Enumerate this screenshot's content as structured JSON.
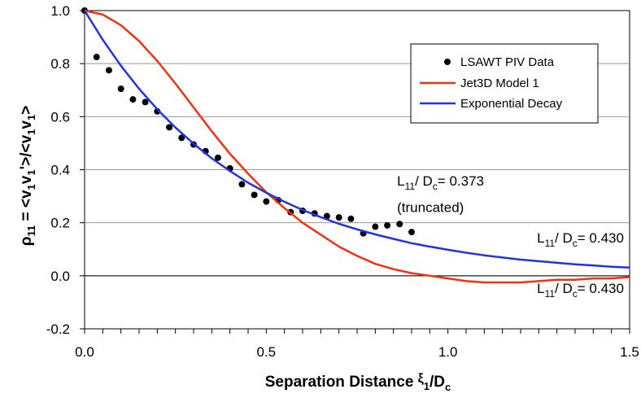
{
  "chart_data": {
    "type": "scatter",
    "xlabel": "Separation Distance ξ1/Dc",
    "ylabel": "ρ11 = <v1v1'>/<v1v1>",
    "xlim": [
      0.0,
      1.5
    ],
    "ylim": [
      -0.2,
      1.0
    ],
    "x_ticks": [
      "0.0",
      "0.5",
      "1.0",
      "1.5"
    ],
    "y_ticks": [
      "1.0",
      "0.8",
      "0.6",
      "0.4",
      "0.2",
      "0.0",
      "-0.2"
    ],
    "grid": "horizontal",
    "legend_position": "top-right",
    "series": [
      {
        "name": "LSAWT PIV Data",
        "kind": "markers",
        "color": "#000000",
        "x": [
          0.0,
          0.033,
          0.067,
          0.1,
          0.133,
          0.167,
          0.2,
          0.233,
          0.267,
          0.3,
          0.333,
          0.367,
          0.4,
          0.433,
          0.467,
          0.5,
          0.533,
          0.567,
          0.6,
          0.633,
          0.667,
          0.7,
          0.733,
          0.767,
          0.8,
          0.833,
          0.867,
          0.9
        ],
        "y": [
          1.0,
          0.825,
          0.775,
          0.705,
          0.665,
          0.655,
          0.62,
          0.56,
          0.52,
          0.495,
          0.47,
          0.445,
          0.405,
          0.345,
          0.305,
          0.28,
          0.285,
          0.24,
          0.245,
          0.235,
          0.225,
          0.22,
          0.215,
          0.16,
          0.185,
          0.19,
          0.195,
          0.165
        ]
      },
      {
        "name": "Jet3D Model 1",
        "kind": "line",
        "color": "#ee3311",
        "x": [
          0.0,
          0.05,
          0.1,
          0.15,
          0.2,
          0.25,
          0.3,
          0.35,
          0.4,
          0.45,
          0.5,
          0.55,
          0.6,
          0.65,
          0.7,
          0.75,
          0.8,
          0.85,
          0.9,
          0.95,
          1.0,
          1.05,
          1.1,
          1.15,
          1.2,
          1.25,
          1.3,
          1.35,
          1.4,
          1.45,
          1.5
        ],
        "y": [
          1.0,
          0.985,
          0.945,
          0.885,
          0.81,
          0.725,
          0.635,
          0.545,
          0.46,
          0.385,
          0.315,
          0.255,
          0.2,
          0.155,
          0.11,
          0.075,
          0.045,
          0.025,
          0.01,
          0.0,
          -0.01,
          -0.02,
          -0.025,
          -0.025,
          -0.025,
          -0.02,
          -0.015,
          -0.015,
          -0.01,
          -0.01,
          -0.005
        ]
      },
      {
        "name": "Exponential Decay",
        "kind": "line",
        "color": "#1f35dd",
        "x": [
          0.0,
          0.05,
          0.1,
          0.15,
          0.2,
          0.25,
          0.3,
          0.35,
          0.4,
          0.45,
          0.5,
          0.55,
          0.6,
          0.65,
          0.7,
          0.75,
          0.8,
          0.85,
          0.9,
          0.95,
          1.0,
          1.05,
          1.1,
          1.15,
          1.2,
          1.25,
          1.3,
          1.35,
          1.4,
          1.45,
          1.5
        ],
        "y": [
          1.0,
          0.89,
          0.792,
          0.705,
          0.628,
          0.559,
          0.498,
          0.443,
          0.395,
          0.351,
          0.313,
          0.279,
          0.248,
          0.221,
          0.196,
          0.175,
          0.156,
          0.139,
          0.123,
          0.11,
          0.098,
          0.087,
          0.077,
          0.069,
          0.061,
          0.055,
          0.049,
          0.043,
          0.039,
          0.034,
          0.031
        ]
      }
    ],
    "annotations": [
      {
        "text": "L11/ Dc= 0.373",
        "x": 0.86,
        "y": 0.34
      },
      {
        "text": "(truncated)",
        "x": 0.86,
        "y": 0.24
      },
      {
        "text": "L11/ Dc= 0.430",
        "x": 1.245,
        "y": 0.125
      },
      {
        "text": "L11/ Dc= 0.430",
        "x": 1.245,
        "y": -0.065
      }
    ]
  }
}
